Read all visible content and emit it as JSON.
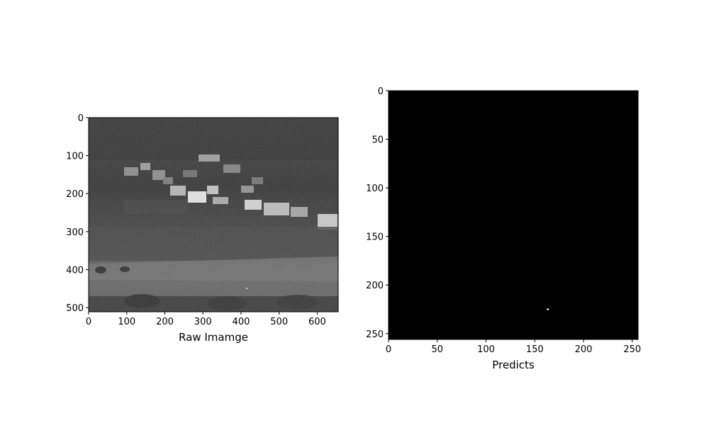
{
  "panels": [
    {
      "xlabel": "Raw Imamge",
      "xticks": [
        "0",
        "100",
        "200",
        "300",
        "400",
        "500",
        "600"
      ],
      "xtick_values": [
        0,
        100,
        200,
        300,
        400,
        500,
        600
      ],
      "yticks": [
        "0",
        "100",
        "200",
        "300",
        "400",
        "500"
      ],
      "ytick_values": [
        0,
        100,
        200,
        300,
        400,
        500
      ],
      "xlim": [
        0,
        655
      ],
      "ylim": [
        0,
        511
      ],
      "image": "grayscale infrared photo of hillside village"
    },
    {
      "xlabel": "Predicts",
      "xticks": [
        "0",
        "50",
        "100",
        "150",
        "200",
        "250"
      ],
      "xtick_values": [
        0,
        50,
        100,
        150,
        200,
        250
      ],
      "yticks": [
        "0",
        "50",
        "100",
        "150",
        "200",
        "250"
      ],
      "ytick_values": [
        0,
        50,
        100,
        150,
        200,
        250
      ],
      "xlim": [
        0,
        256
      ],
      "ylim": [
        0,
        256
      ],
      "image": "black mask with single white pixel target",
      "target": {
        "x": 163,
        "y": 225
      }
    }
  ],
  "colors": {
    "axis": "#000000",
    "mask": "#000000",
    "target": "#ffffff"
  }
}
